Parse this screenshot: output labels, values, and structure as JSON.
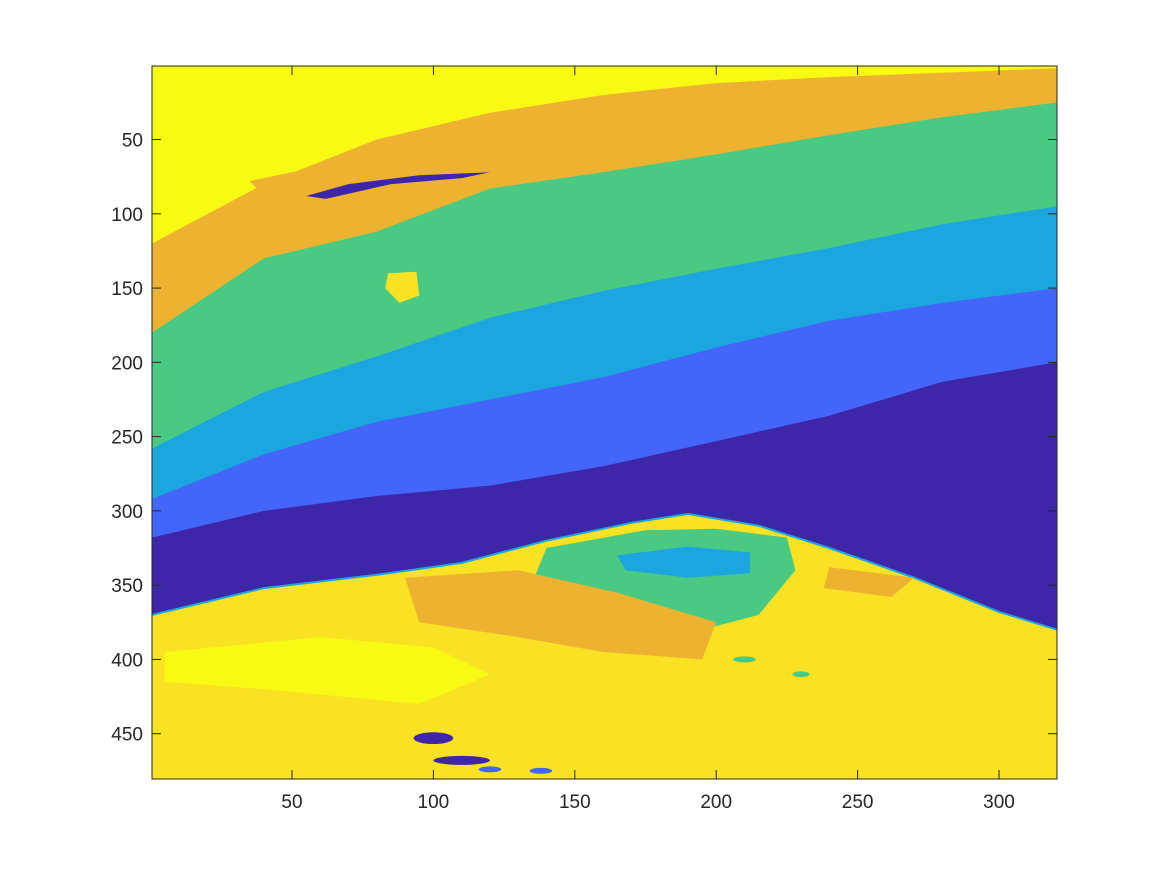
{
  "chart_data": {
    "type": "heatmap",
    "title": "",
    "xlabel": "",
    "ylabel": "",
    "xlim": [
      0.5,
      320.5
    ],
    "ylim": [
      0.5,
      480.5
    ],
    "y_reversed": true,
    "grid": false,
    "colorbar": false,
    "colormap": "parula",
    "xticks": [
      50,
      100,
      150,
      200,
      250,
      300
    ],
    "yticks": [
      50,
      100,
      150,
      200,
      250,
      300,
      350,
      400,
      450
    ],
    "xtick_labels": [
      "50",
      "100",
      "150",
      "200",
      "250",
      "300"
    ],
    "ytick_labels": [
      "50",
      "100",
      "150",
      "200",
      "250",
      "300",
      "350",
      "400",
      "450"
    ],
    "class_colors": [
      "#3d26a8",
      "#4465fa",
      "#1ca6df",
      "#49c982",
      "#edb330",
      "#f9e124",
      "#f9fa14"
    ],
    "layers": [
      {
        "class": 0,
        "top_boundary": [
          [
            1,
            318
          ],
          [
            40,
            300
          ],
          [
            80,
            290
          ],
          [
            120,
            283
          ],
          [
            160,
            270
          ],
          [
            200,
            253
          ],
          [
            240,
            236
          ],
          [
            280,
            213
          ],
          [
            320,
            200
          ]
        ]
      },
      {
        "class": 1,
        "top_boundary": [
          [
            1,
            292
          ],
          [
            40,
            262
          ],
          [
            80,
            240
          ],
          [
            120,
            225
          ],
          [
            160,
            210
          ],
          [
            200,
            190
          ],
          [
            240,
            172
          ],
          [
            280,
            160
          ],
          [
            320,
            150
          ]
        ]
      },
      {
        "class": 2,
        "top_boundary": [
          [
            1,
            258
          ],
          [
            40,
            220
          ],
          [
            80,
            196
          ],
          [
            120,
            170
          ],
          [
            160,
            152
          ],
          [
            200,
            137
          ],
          [
            240,
            123
          ],
          [
            280,
            107
          ],
          [
            320,
            95
          ]
        ]
      },
      {
        "class": 3,
        "top_boundary": [
          [
            1,
            180
          ],
          [
            40,
            130
          ],
          [
            80,
            112
          ],
          [
            120,
            83
          ],
          [
            160,
            72
          ],
          [
            200,
            60
          ],
          [
            240,
            47
          ],
          [
            280,
            35
          ],
          [
            320,
            25
          ]
        ]
      },
      {
        "class": 4,
        "top_boundary": [
          [
            1,
            120
          ],
          [
            40,
            80
          ],
          [
            80,
            50
          ],
          [
            120,
            32
          ],
          [
            160,
            20
          ],
          [
            200,
            12
          ],
          [
            240,
            8
          ],
          [
            280,
            5
          ],
          [
            320,
            2
          ]
        ]
      }
    ],
    "ground": {
      "class": 5,
      "top_boundary": [
        [
          1,
          370
        ],
        [
          40,
          352
        ],
        [
          80,
          343
        ],
        [
          110,
          335
        ],
        [
          140,
          320
        ],
        [
          170,
          308
        ],
        [
          190,
          302
        ],
        [
          215,
          310
        ],
        [
          240,
          325
        ],
        [
          270,
          345
        ],
        [
          300,
          368
        ],
        [
          320,
          380
        ]
      ],
      "interior_regions": [
        {
          "class": 3,
          "polygon": [
            [
              140,
              325
            ],
            [
              175,
              313
            ],
            [
              200,
              312
            ],
            [
              225,
              318
            ],
            [
              228,
              340
            ],
            [
              215,
              370
            ],
            [
              195,
              380
            ],
            [
              165,
              360
            ],
            [
              135,
              348
            ]
          ]
        },
        {
          "class": 2,
          "polygon": [
            [
              165,
              330
            ],
            [
              190,
              324
            ],
            [
              212,
              328
            ],
            [
              212,
              342
            ],
            [
              190,
              345
            ],
            [
              168,
              340
            ]
          ]
        },
        {
          "class": 4,
          "polygon": [
            [
              90,
              345
            ],
            [
              130,
              340
            ],
            [
              165,
              355
            ],
            [
              200,
              375
            ],
            [
              195,
              400
            ],
            [
              160,
              395
            ],
            [
              130,
              385
            ],
            [
              95,
              375
            ]
          ]
        },
        {
          "class": 4,
          "polygon": [
            [
              240,
              338
            ],
            [
              270,
              345
            ],
            [
              262,
              358
            ],
            [
              238,
              352
            ]
          ]
        },
        {
          "class": 6,
          "polygon": [
            [
              5,
              395
            ],
            [
              60,
              385
            ],
            [
              100,
              392
            ],
            [
              120,
              410
            ],
            [
              95,
              430
            ],
            [
              40,
              420
            ],
            [
              5,
              415
            ]
          ]
        }
      ],
      "spots": [
        {
          "x": 100,
          "y": 453,
          "rx": 7,
          "ry": 4,
          "class": 0
        },
        {
          "x": 110,
          "y": 468,
          "rx": 10,
          "ry": 3,
          "class": 0
        },
        {
          "x": 120,
          "y": 474,
          "rx": 4,
          "ry": 2,
          "class": 1
        },
        {
          "x": 138,
          "y": 475,
          "rx": 4,
          "ry": 2,
          "class": 1
        },
        {
          "x": 210,
          "y": 400,
          "rx": 4,
          "ry": 2,
          "class": 3
        },
        {
          "x": 230,
          "y": 410,
          "rx": 3,
          "ry": 2,
          "class": 3
        }
      ]
    },
    "features": [
      {
        "class": 4,
        "polygon": [
          [
            35,
            78
          ],
          [
            60,
            68
          ],
          [
            95,
            62
          ],
          [
            125,
            65
          ],
          [
            138,
            76
          ],
          [
            120,
            80
          ],
          [
            90,
            78
          ],
          [
            55,
            88
          ],
          [
            40,
            88
          ]
        ]
      },
      {
        "class": 0,
        "polygon": [
          [
            55,
            88
          ],
          [
            70,
            80
          ],
          [
            95,
            74
          ],
          [
            120,
            72
          ],
          [
            110,
            76
          ],
          [
            85,
            80
          ],
          [
            62,
            90
          ]
        ]
      },
      {
        "class": 5,
        "polygon": [
          [
            84,
            140
          ],
          [
            94,
            139
          ],
          [
            95,
            155
          ],
          [
            88,
            160
          ],
          [
            83,
            150
          ]
        ]
      }
    ]
  }
}
